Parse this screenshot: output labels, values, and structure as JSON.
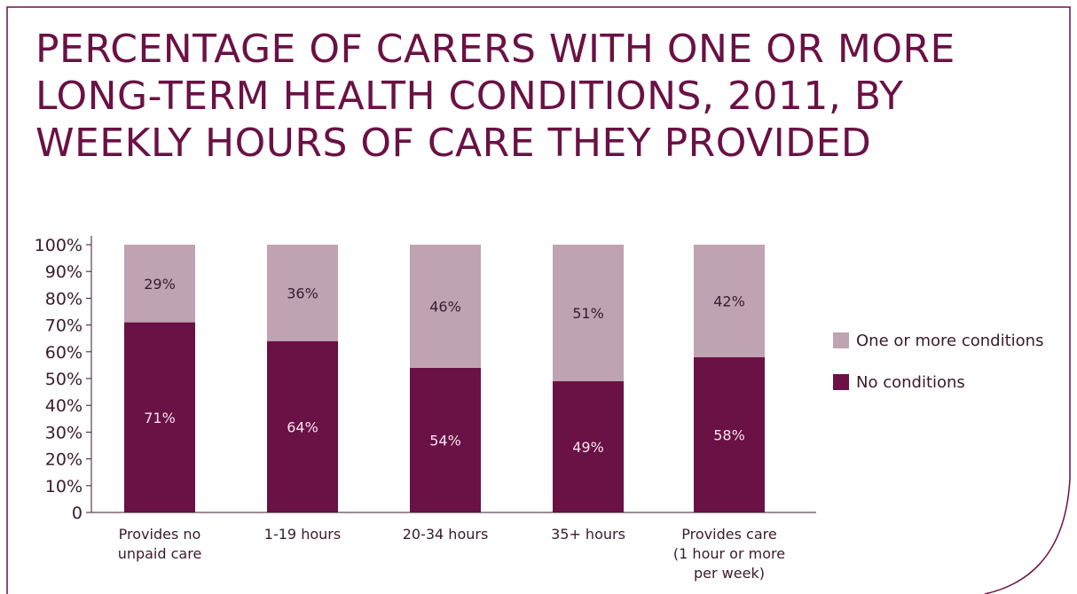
{
  "title_lines": [
    "PERCENTAGE OF CARERS WITH ONE OR MORE",
    "LONG-TERM HEALTH CONDITIONS, 2011, BY",
    "WEEKLY HOURS OF CARE THEY PROVIDED"
  ],
  "colors": {
    "frame": "#6a1145",
    "title": "#6a1145",
    "no_conditions": "#6a1145",
    "one_or_more": "#bfa3b2",
    "label_on_dark": "#f3e6ed",
    "label_on_light": "#3a1a2c"
  },
  "chart_data": {
    "type": "bar",
    "stacked": true,
    "title": "PERCENTAGE OF CARERS WITH ONE OR MORE LONG-TERM HEALTH CONDITIONS, 2011, BY WEEKLY HOURS OF CARE THEY PROVIDED",
    "categories": [
      [
        "Provides no",
        "unpaid care"
      ],
      [
        "1-19 hours"
      ],
      [
        "20-34 hours"
      ],
      [
        "35+ hours"
      ],
      [
        "Provides care",
        "(1 hour or more",
        "per week)"
      ]
    ],
    "series": [
      {
        "name": "No conditions",
        "values": [
          71,
          64,
          54,
          49,
          58
        ],
        "labels": [
          "71%",
          "64%",
          "54%",
          "49%",
          "58%"
        ]
      },
      {
        "name": "One or more conditions",
        "values": [
          29,
          36,
          46,
          51,
          42
        ],
        "labels": [
          "29%",
          "36%",
          "46%",
          "51%",
          "42%"
        ]
      }
    ],
    "y_ticks": [
      "0",
      "10%",
      "20%",
      "30%",
      "40%",
      "50%",
      "60%",
      "70%",
      "80%",
      "90%",
      "100%"
    ],
    "ylim": [
      0,
      100
    ],
    "xlabel": "",
    "ylabel": "",
    "grid": false,
    "legend_position": "right",
    "legend": [
      "One or more conditions",
      "No conditions"
    ]
  }
}
